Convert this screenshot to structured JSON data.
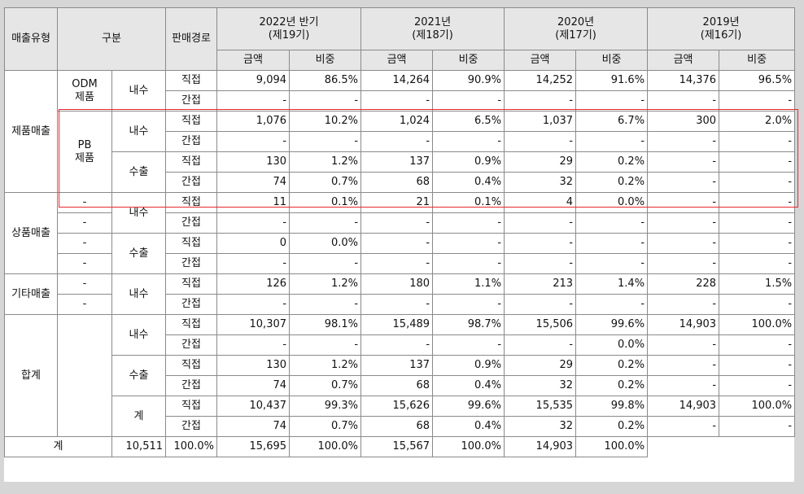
{
  "header": {
    "sales_type": "매출유형",
    "category": "구분",
    "channel": "판매경로",
    "periods": [
      {
        "label": "2022년 반기\n(제19기)"
      },
      {
        "label": "2021년\n(제18기)"
      },
      {
        "label": "2020년\n(제17기)"
      },
      {
        "label": "2019년\n(제16기)"
      }
    ],
    "amount": "금액",
    "ratio": "비중"
  },
  "groups": {
    "product": "제품매출",
    "merch": "상품매출",
    "other": "기타매출",
    "total": "합계"
  },
  "sub": {
    "odm": "ODM\n제품",
    "pb": "PB\n제품",
    "dash": "-"
  },
  "market": {
    "domestic": "내수",
    "export": "수출",
    "subtotal": "계"
  },
  "channel": {
    "direct": "직접",
    "indirect": "간접"
  },
  "grand_total_label": "계",
  "rows": [
    [
      "9,094",
      "86.5%",
      "14,264",
      "90.9%",
      "14,252",
      "91.6%",
      "14,376",
      "96.5%"
    ],
    [
      "-",
      "-",
      "-",
      "-",
      "-",
      "-",
      "-",
      "-"
    ],
    [
      "1,076",
      "10.2%",
      "1,024",
      "6.5%",
      "1,037",
      "6.7%",
      "300",
      "2.0%"
    ],
    [
      "-",
      "-",
      "-",
      "-",
      "-",
      "-",
      "-",
      "-"
    ],
    [
      "130",
      "1.2%",
      "137",
      "0.9%",
      "29",
      "0.2%",
      "-",
      "-"
    ],
    [
      "74",
      "0.7%",
      "68",
      "0.4%",
      "32",
      "0.2%",
      "-",
      "-"
    ],
    [
      "11",
      "0.1%",
      "21",
      "0.1%",
      "4",
      "0.0%",
      "-",
      "-"
    ],
    [
      "-",
      "-",
      "-",
      "-",
      "-",
      "-",
      "-",
      "-"
    ],
    [
      "0",
      "0.0%",
      "-",
      "-",
      "-",
      "-",
      "-",
      "-"
    ],
    [
      "-",
      "-",
      "-",
      "-",
      "-",
      "-",
      "-",
      "-"
    ],
    [
      "126",
      "1.2%",
      "180",
      "1.1%",
      "213",
      "1.4%",
      "228",
      "1.5%"
    ],
    [
      "-",
      "-",
      "-",
      "-",
      "-",
      "-",
      "-",
      "-"
    ],
    [
      "10,307",
      "98.1%",
      "15,489",
      "98.7%",
      "15,506",
      "99.6%",
      "14,903",
      "100.0%"
    ],
    [
      "-",
      "-",
      "-",
      "-",
      "-",
      "0.0%",
      "-",
      "-"
    ],
    [
      "130",
      "1.2%",
      "137",
      "0.9%",
      "29",
      "0.2%",
      "-",
      "-"
    ],
    [
      "74",
      "0.7%",
      "68",
      "0.4%",
      "32",
      "0.2%",
      "-",
      "-"
    ],
    [
      "10,437",
      "99.3%",
      "15,626",
      "99.6%",
      "15,535",
      "99.8%",
      "14,903",
      "100.0%"
    ],
    [
      "74",
      "0.7%",
      "68",
      "0.4%",
      "32",
      "0.2%",
      "-",
      "-"
    ],
    [
      "10,511",
      "100.0%",
      "15,695",
      "100.0%",
      "15,567",
      "100.0%",
      "14,903",
      "100.0%"
    ]
  ],
  "highlight_color": "#e8282d",
  "header_bg": "#e6e6e6"
}
